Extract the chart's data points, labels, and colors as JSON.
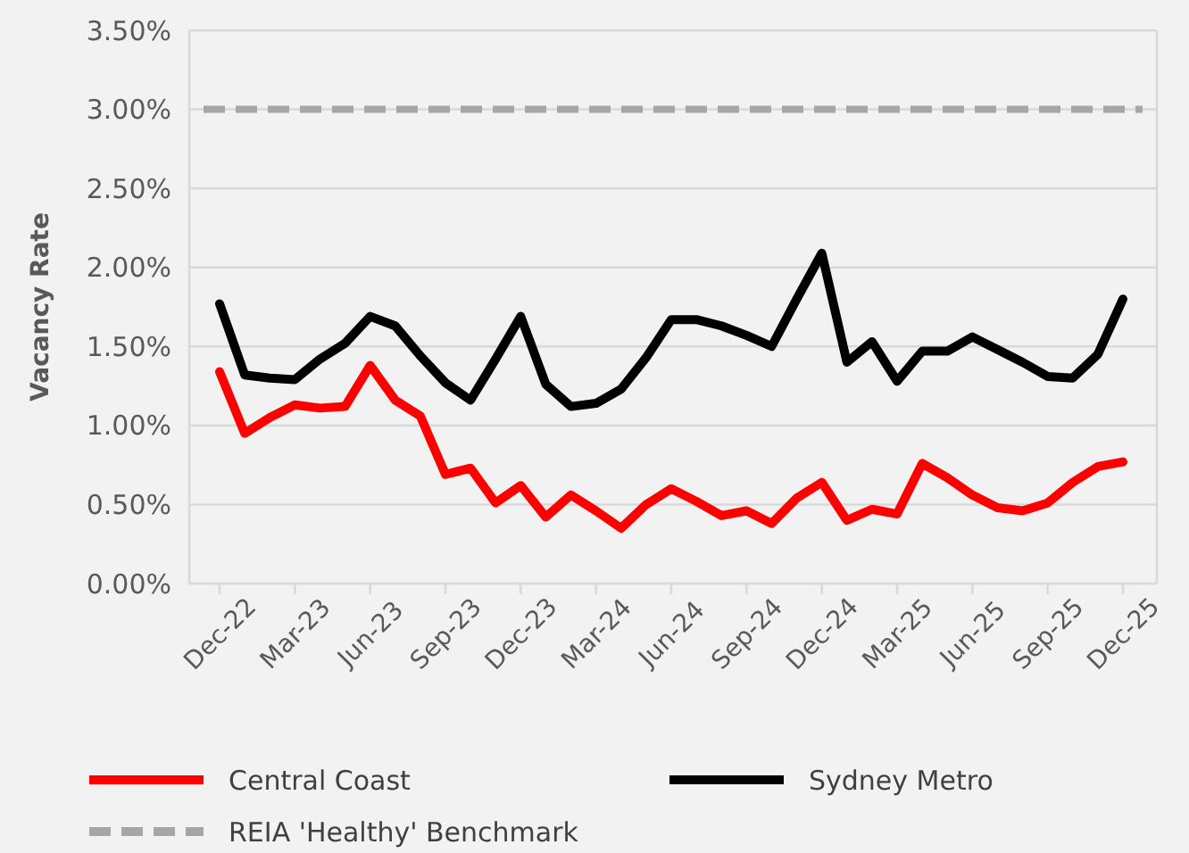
{
  "chart_data": {
    "type": "line",
    "ylabel": "Vacancy Rate",
    "categories": [
      "Dec-22",
      null,
      null,
      "Mar-23",
      null,
      null,
      "Jun-23",
      null,
      null,
      "Sep-23",
      null,
      null,
      "Dec-23",
      null,
      null,
      "Mar-24",
      null,
      null,
      "Jun-24",
      null,
      null,
      "Sep-24",
      null,
      null,
      "Dec-24",
      null,
      null,
      "Mar-25",
      null,
      null,
      "Jun-25",
      null,
      null,
      "Sep-25",
      null,
      null,
      "Dec-25"
    ],
    "series": [
      {
        "name": "Central Coast",
        "color": "#ff0000",
        "values": [
          1.34,
          0.95,
          1.05,
          1.13,
          1.11,
          1.12,
          1.38,
          1.16,
          1.06,
          0.69,
          0.73,
          0.51,
          0.62,
          0.42,
          0.56,
          0.46,
          0.35,
          0.5,
          0.6,
          0.52,
          0.43,
          0.46,
          0.38,
          0.54,
          0.64,
          0.4,
          0.47,
          0.44,
          0.76,
          0.67,
          0.56,
          0.48,
          0.46,
          0.51,
          0.64,
          0.74,
          0.77
        ]
      },
      {
        "name": "Sydney Metro",
        "color": "#000000",
        "values": [
          1.77,
          1.32,
          1.3,
          1.29,
          1.42,
          1.52,
          1.69,
          1.63,
          1.44,
          1.27,
          1.16,
          1.42,
          1.69,
          1.26,
          1.12,
          1.14,
          1.23,
          1.43,
          1.67,
          1.67,
          1.63,
          1.57,
          1.5,
          1.8,
          2.09,
          1.4,
          1.53,
          1.28,
          1.47,
          1.47,
          1.56,
          1.48,
          1.4,
          1.31,
          1.3,
          1.45,
          1.8
        ]
      }
    ],
    "ref_lines": [
      {
        "axis": "y",
        "value": 3,
        "label": "REIA 'Healthy' Benchmark",
        "color": "#a6a6a6",
        "line_style": "dashed"
      }
    ],
    "ylim": [
      0,
      3.5
    ],
    "yticks": [
      {
        "value": 0,
        "label": "0.00%"
      },
      {
        "value": 0.5,
        "label": "0.50%"
      },
      {
        "value": 1,
        "label": "1.00%"
      },
      {
        "value": 1.5,
        "label": "1.50%"
      },
      {
        "value": 2,
        "label": "2.00%"
      },
      {
        "value": 2.5,
        "label": "2.50%"
      },
      {
        "value": 3,
        "label": "3.00%"
      },
      {
        "value": 3.5,
        "label": "3.50%"
      }
    ],
    "grid": "y",
    "legend": "bottom",
    "line_style": "solid",
    "marker": "none"
  }
}
